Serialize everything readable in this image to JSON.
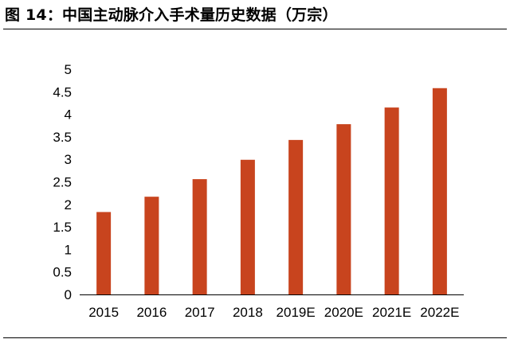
{
  "figure": {
    "title": "图 14：中国主动脉介入手术量历史数据（万宗）"
  },
  "colors": {
    "bar": "#C8441E",
    "axis": "#000000"
  },
  "chart_data": {
    "type": "bar",
    "title": "",
    "xlabel": "",
    "ylabel": "",
    "categories": [
      "2015",
      "2016",
      "2017",
      "2018",
      "2019E",
      "2020E",
      "2021E",
      "2022E"
    ],
    "values": [
      1.83,
      2.17,
      2.56,
      2.99,
      3.43,
      3.78,
      4.15,
      4.58
    ],
    "ylim": [
      0,
      5
    ],
    "yticks": [
      "0",
      "0.5",
      "1",
      "1.5",
      "2",
      "2.5",
      "3",
      "3.5",
      "4",
      "4.5",
      "5"
    ],
    "grid": false,
    "legend": "none"
  }
}
